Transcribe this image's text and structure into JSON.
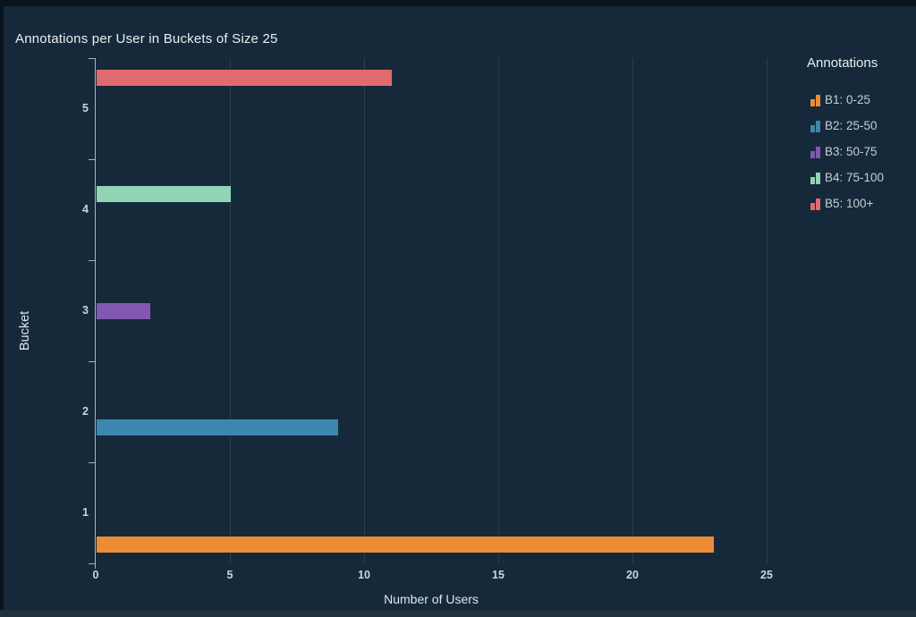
{
  "theme": {
    "page_background": "#0a141c",
    "panel_background": "#16293a",
    "axis_color": "#a9b6bf",
    "grid_color": "rgba(173,203,224,0.13)",
    "title_color": "#e8eef2",
    "tick_label_color": "#ccd5da",
    "legend_text_color": "#c5ced5"
  },
  "chart_data": {
    "type": "bar",
    "orientation": "horizontal",
    "title": "Annotations per User in Buckets of Size 25",
    "xlabel": "Number of Users",
    "ylabel": "Bucket",
    "categories": [
      "1",
      "2",
      "3",
      "4",
      "5"
    ],
    "x_ticks": [
      0,
      5,
      10,
      15,
      20,
      25
    ],
    "xlim": [
      0,
      25
    ],
    "grid": "vertical",
    "legend_position": "right",
    "legend_title": "Annotations",
    "series": [
      {
        "name": "B1: 0-25",
        "color": "#ee8c33",
        "values": [
          23,
          0,
          0,
          0,
          0
        ]
      },
      {
        "name": "B2: 25-50",
        "color": "#3d87af",
        "values": [
          0,
          9,
          0,
          0,
          0
        ]
      },
      {
        "name": "B3: 50-75",
        "color": "#8257b2",
        "values": [
          0,
          0,
          2,
          0,
          0
        ]
      },
      {
        "name": "B4: 75-100",
        "color": "#90d4b4",
        "values": [
          0,
          0,
          0,
          5,
          0
        ]
      },
      {
        "name": "B5: 100+",
        "color": "#e16a6e",
        "values": [
          0,
          0,
          0,
          0,
          11
        ]
      }
    ]
  }
}
